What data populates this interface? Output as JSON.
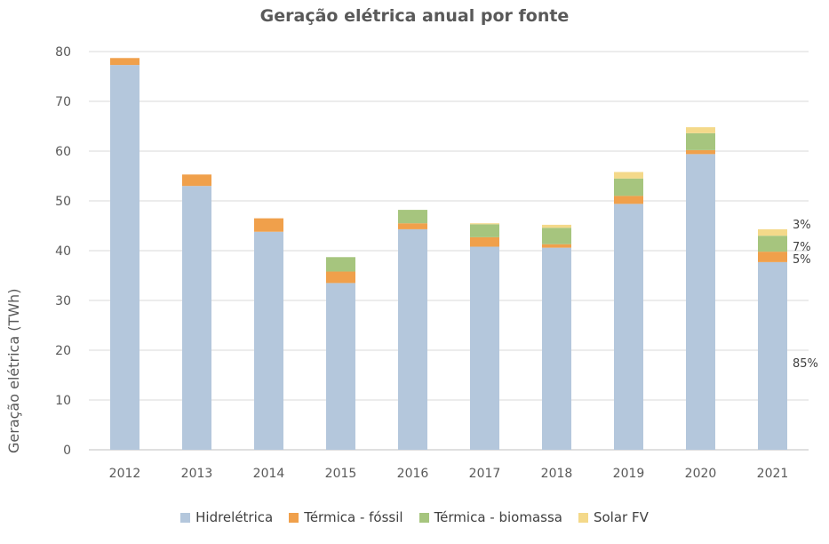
{
  "chart_data": {
    "type": "bar",
    "stacked": true,
    "title": "Geração elétrica anual por fonte",
    "xlabel": "",
    "ylabel": "Geração elétrica (TWh)",
    "ylim": [
      0,
      80
    ],
    "yticks": [
      0,
      10,
      20,
      30,
      40,
      50,
      60,
      70,
      80
    ],
    "grid": true,
    "legend_position": "bottom",
    "categories": [
      "2012",
      "2013",
      "2014",
      "2015",
      "2016",
      "2017",
      "2018",
      "2019",
      "2020",
      "2021"
    ],
    "series": [
      {
        "name": "Hidrelétrica",
        "color": "#b4c7dc",
        "values": [
          77.3,
          53.0,
          43.8,
          33.5,
          44.3,
          40.8,
          40.6,
          49.4,
          59.4,
          37.7
        ]
      },
      {
        "name": "Térmica - fóssil",
        "color": "#f0a04b",
        "values": [
          1.4,
          2.3,
          2.7,
          2.3,
          1.2,
          1.9,
          0.7,
          1.6,
          0.8,
          2.1
        ]
      },
      {
        "name": "Térmica - biomassa",
        "color": "#a6c57e",
        "values": [
          0,
          0,
          0,
          2.9,
          2.7,
          2.6,
          3.3,
          3.5,
          3.4,
          3.2
        ]
      },
      {
        "name": "Solar FV",
        "color": "#f4d98a",
        "values": [
          0,
          0,
          0,
          0,
          0,
          0.2,
          0.6,
          1.3,
          1.2,
          1.3
        ]
      }
    ],
    "annotations": [
      {
        "category": "2021",
        "series": "Solar FV",
        "text": "3%"
      },
      {
        "category": "2021",
        "series": "Térmica - biomassa",
        "text": "7%"
      },
      {
        "category": "2021",
        "series": "Térmica - fóssil",
        "text": "5%"
      },
      {
        "category": "2021",
        "series": "Hidrelétrica",
        "text": "85%"
      }
    ]
  }
}
